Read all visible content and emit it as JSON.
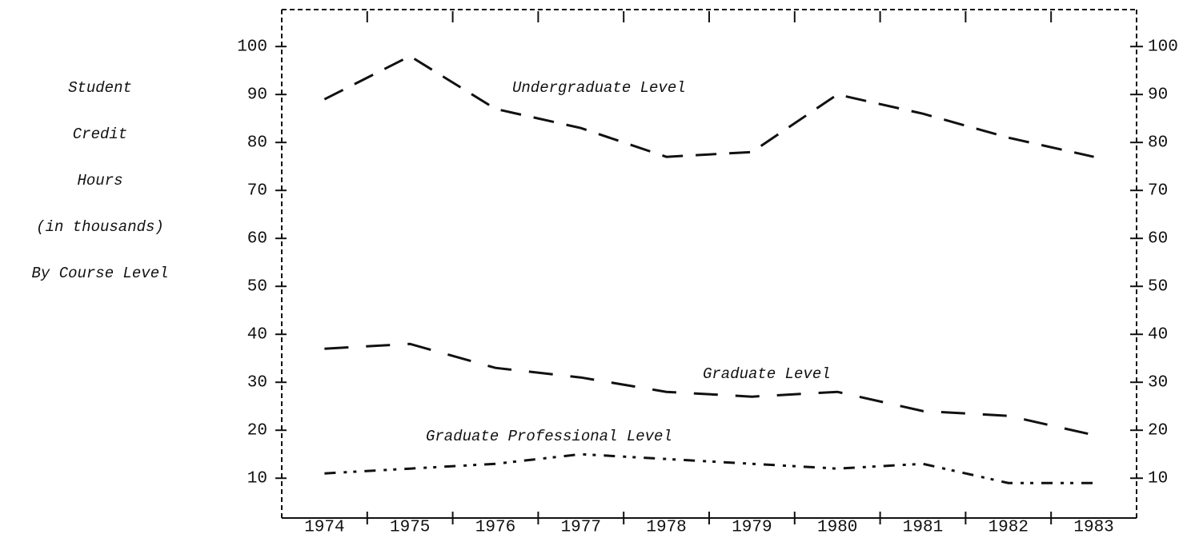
{
  "chart_data": {
    "type": "line",
    "ylabel_lines": [
      "Student",
      "Credit",
      "Hours",
      "(in thousands)",
      "By Course Level"
    ],
    "categories": [
      "1974",
      "1975",
      "1976",
      "1977",
      "1978",
      "1979",
      "1980",
      "1981",
      "1982",
      "1983"
    ],
    "series": [
      {
        "name": "Undergraduate Level",
        "color": "#111111",
        "values": [
          89,
          98,
          87,
          83,
          77,
          78,
          90,
          86,
          81,
          77
        ]
      },
      {
        "name": "Graduate Level",
        "color": "#111111",
        "values": [
          37,
          38,
          33,
          31,
          28,
          27,
          28,
          24,
          23,
          19
        ]
      },
      {
        "name": "Graduate Professional Level",
        "color": "#111111",
        "values": [
          11,
          12,
          13,
          15,
          14,
          13,
          12,
          13,
          9,
          9
        ]
      }
    ],
    "ylim": [
      1.7,
      107.7
    ],
    "yticks": [
      10,
      20,
      30,
      40,
      50,
      60,
      70,
      80,
      90,
      100
    ],
    "y2lim": [
      1.7,
      107.7
    ],
    "y2ticks": [
      10,
      20,
      30,
      40,
      50,
      60,
      70,
      80,
      90,
      100
    ]
  }
}
